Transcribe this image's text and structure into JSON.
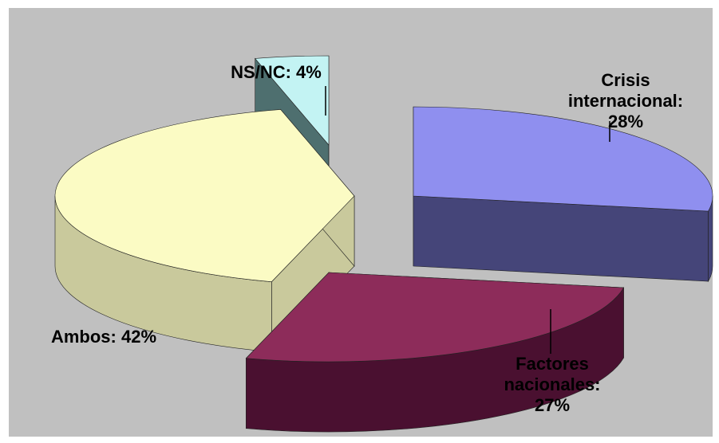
{
  "chart_data": {
    "type": "pie",
    "style": "3d-exploded",
    "slices": [
      {
        "label": "Crisis internacional",
        "value": 28,
        "label_lines": [
          "Crisis",
          "internacional:",
          "28%"
        ],
        "top_color": "#8f8fef",
        "side_color": "#454579"
      },
      {
        "label": "Factores nacionales",
        "value": 27,
        "label_lines": [
          "Factores",
          "nacionales:",
          "27%"
        ],
        "top_color": "#8d2c5a",
        "side_color": "#4a1030"
      },
      {
        "label": "Ambos",
        "value": 42,
        "label_lines": [
          "Ambos: 42%"
        ],
        "top_color": "#fbfbc4",
        "side_color": "#c9c99c"
      },
      {
        "label": "NS/NC",
        "value": 4,
        "label_lines": [
          "NS/NC: 4%"
        ],
        "top_color": "#c3f3f3",
        "side_color": "#4e6f6f"
      }
    ],
    "background": "#c0c0c0"
  }
}
